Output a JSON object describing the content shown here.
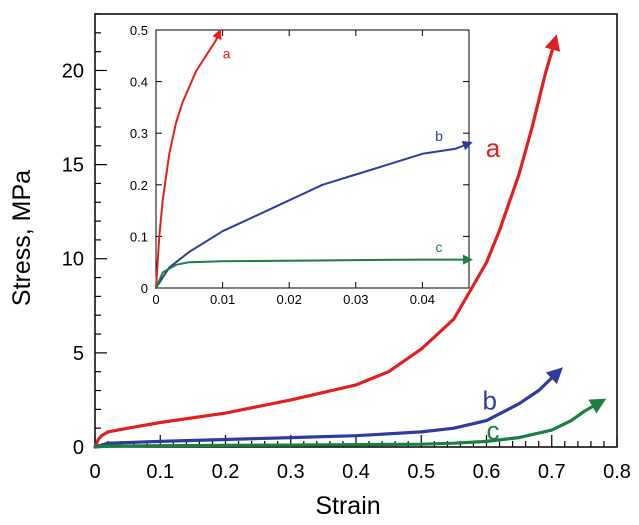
{
  "chart_data": [
    {
      "type": "line",
      "xlabel": "Strain",
      "ylabel": "Stress, MPa",
      "xlim": [
        0,
        0.8
      ],
      "ylim": [
        0,
        23
      ],
      "x_ticks": [
        "0",
        "0.1",
        "0.2",
        "0.3",
        "0.4",
        "0.5",
        "0.6",
        "0.7",
        "0.8"
      ],
      "y_ticks": [
        "0",
        "5",
        "10",
        "15",
        "20"
      ],
      "grid": false,
      "series": [
        {
          "name": "a",
          "color": "#e02020",
          "x": [
            0,
            0.005,
            0.01,
            0.02,
            0.05,
            0.1,
            0.2,
            0.3,
            0.4,
            0.45,
            0.5,
            0.55,
            0.6,
            0.62,
            0.65,
            0.67,
            0.69,
            0.7,
            0.705
          ],
          "y": [
            0,
            0.4,
            0.6,
            0.8,
            1.0,
            1.3,
            1.8,
            2.5,
            3.3,
            4.0,
            5.2,
            6.8,
            9.8,
            11.5,
            14.5,
            17.0,
            19.8,
            21.0,
            21.6
          ]
        },
        {
          "name": "b",
          "color": "#2f3c9e",
          "x": [
            0,
            0.02,
            0.1,
            0.2,
            0.3,
            0.4,
            0.5,
            0.55,
            0.6,
            0.65,
            0.68,
            0.71
          ],
          "y": [
            0,
            0.2,
            0.3,
            0.4,
            0.5,
            0.6,
            0.8,
            1.0,
            1.4,
            2.3,
            3.0,
            4.0
          ]
        },
        {
          "name": "c",
          "color": "#1a8040",
          "x": [
            0,
            0.02,
            0.1,
            0.3,
            0.5,
            0.55,
            0.6,
            0.65,
            0.7,
            0.73,
            0.75,
            0.775
          ],
          "y": [
            0,
            0.05,
            0.07,
            0.1,
            0.15,
            0.2,
            0.3,
            0.5,
            0.9,
            1.4,
            1.9,
            2.4
          ]
        }
      ]
    },
    {
      "type": "line",
      "xlim": [
        0,
        0.047
      ],
      "ylim": [
        0,
        0.5
      ],
      "x_ticks": [
        "0",
        "0.01",
        "0.02",
        "0.03",
        "0.04"
      ],
      "y_ticks": [
        "0",
        "0.1",
        "0.2",
        "0.3",
        "0.4",
        "0.5"
      ],
      "grid": false,
      "series": [
        {
          "name": "a",
          "color": "#e02020",
          "x": [
            0,
            0.0005,
            0.001,
            0.002,
            0.003,
            0.004,
            0.005,
            0.006,
            0.007,
            0.008,
            0.009,
            0.0095
          ],
          "y": [
            0,
            0.1,
            0.17,
            0.26,
            0.32,
            0.36,
            0.39,
            0.42,
            0.44,
            0.46,
            0.48,
            0.495
          ]
        },
        {
          "name": "b",
          "color": "#2f3c9e",
          "x": [
            0,
            0.002,
            0.005,
            0.01,
            0.015,
            0.02,
            0.025,
            0.03,
            0.035,
            0.04,
            0.045,
            0.047
          ],
          "y": [
            0,
            0.04,
            0.07,
            0.11,
            0.14,
            0.17,
            0.2,
            0.22,
            0.24,
            0.26,
            0.27,
            0.28
          ]
        },
        {
          "name": "c",
          "color": "#1a8040",
          "x": [
            0,
            0.001,
            0.003,
            0.005,
            0.01,
            0.02,
            0.03,
            0.04,
            0.047
          ],
          "y": [
            0,
            0.03,
            0.045,
            0.05,
            0.052,
            0.053,
            0.054,
            0.055,
            0.055
          ]
        }
      ]
    }
  ]
}
